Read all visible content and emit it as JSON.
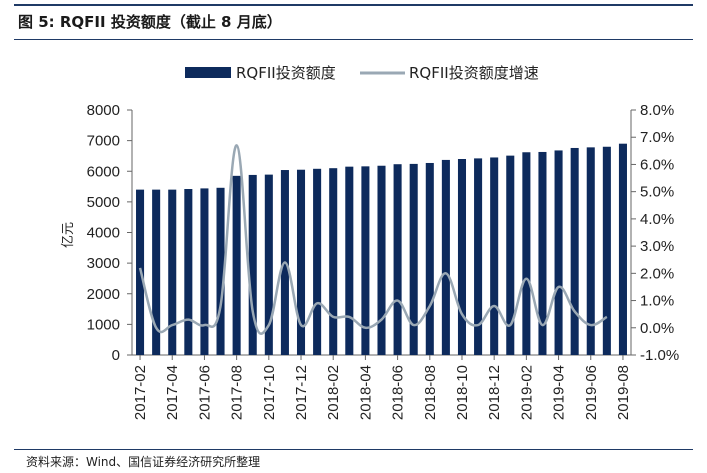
{
  "figure": {
    "title": "图 5:  RQFII 投资额度（截止 8 月底）",
    "source": "资料来源：Wind、国信证券经济研究所整理"
  },
  "colors": {
    "bar": "#0d2a5c",
    "line": "#9aa8b4",
    "rule": "#1f3a66"
  },
  "chart_data": {
    "type": "bar",
    "categories": [
      "2017-02",
      "2017-03",
      "2017-04",
      "2017-05",
      "2017-06",
      "2017-07",
      "2017-08",
      "2017-09",
      "2017-10",
      "2017-11",
      "2017-12",
      "2018-01",
      "2018-02",
      "2018-03",
      "2018-04",
      "2018-05",
      "2018-06",
      "2018-07",
      "2018-08",
      "2018-09",
      "2018-10",
      "2018-11",
      "2018-12",
      "2019-01",
      "2019-02",
      "2019-03",
      "2019-04",
      "2019-05",
      "2019-06",
      "2019-07",
      "2019-08"
    ],
    "x_tick_labels": [
      "2017-02",
      "2017-04",
      "2017-06",
      "2017-08",
      "2017-10",
      "2017-12",
      "2018-02",
      "2018-04",
      "2018-06",
      "2018-08",
      "2018-10",
      "2018-12",
      "2019-02",
      "2019-04",
      "2019-06",
      "2019-08"
    ],
    "series": [
      {
        "name": "RQFII投资额度",
        "type": "bar",
        "axis": "left",
        "values": [
          5400,
          5400,
          5400,
          5420,
          5440,
          5460,
          5850,
          5880,
          5890,
          6040,
          6050,
          6080,
          6100,
          6150,
          6160,
          6180,
          6230,
          6240,
          6270,
          6370,
          6400,
          6420,
          6450,
          6510,
          6620,
          6630,
          6680,
          6760,
          6780,
          6800,
          6900
        ]
      },
      {
        "name": "RQFII投资额度增速",
        "type": "line",
        "axis": "right",
        "values": [
          2.2,
          0.0,
          0.1,
          0.3,
          0.1,
          0.8,
          6.7,
          0.6,
          0.1,
          2.4,
          0.1,
          0.9,
          0.4,
          0.4,
          0.0,
          0.3,
          1.0,
          0.1,
          0.8,
          2.0,
          0.5,
          0.1,
          0.8,
          0.1,
          1.8,
          0.1,
          1.5,
          0.6,
          0.1,
          0.4,
          null
        ]
      }
    ],
    "ylabel": "亿元",
    "ylim": [
      0,
      8000
    ],
    "y_ticks": [
      "0",
      "1000",
      "2000",
      "3000",
      "4000",
      "5000",
      "6000",
      "7000",
      "8000"
    ],
    "y2lim": [
      -1.0,
      8.0
    ],
    "y2_ticks": [
      "-1.0%",
      "0.0%",
      "1.0%",
      "2.0%",
      "3.0%",
      "4.0%",
      "5.0%",
      "6.0%",
      "7.0%",
      "8.0%"
    ],
    "grid": false,
    "legend_position": "top-center"
  }
}
